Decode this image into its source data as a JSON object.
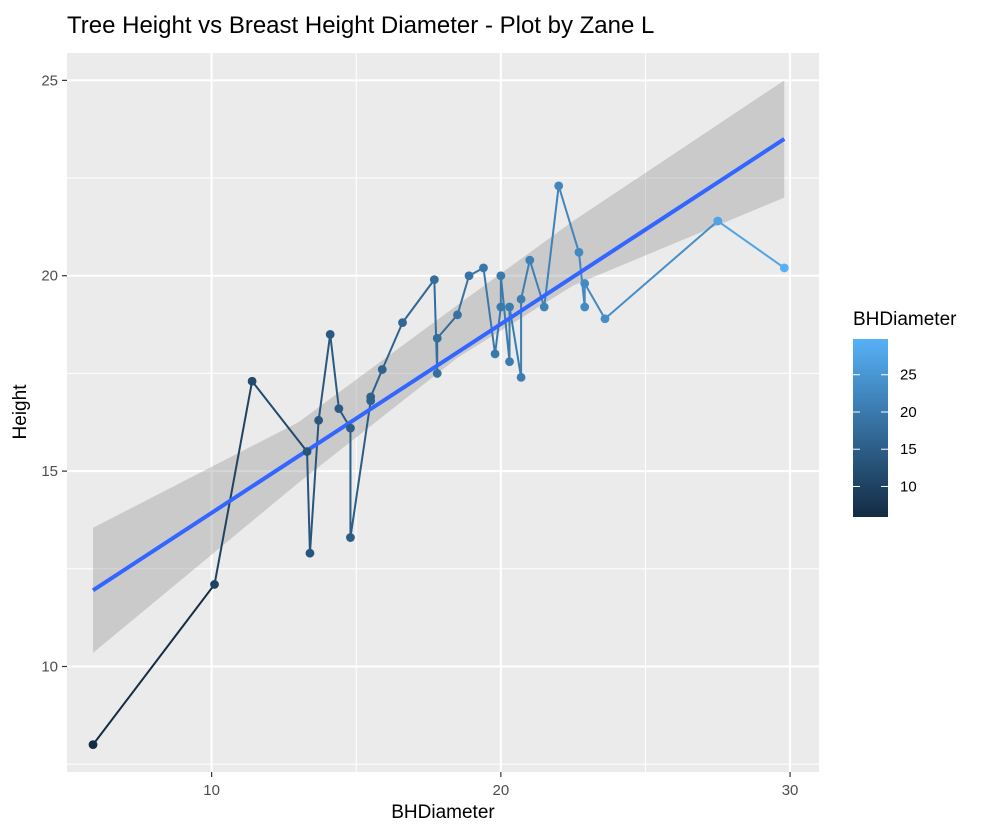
{
  "chart_data": {
    "type": "scatter",
    "title": "Tree Height vs Breast Height Diameter - Plot by Zane L",
    "xlabel": "BHDiameter",
    "ylabel": "Height",
    "xlim": [
      5.0,
      31.0
    ],
    "ylim": [
      7.3,
      25.7
    ],
    "x_ticks": [
      10,
      20,
      30
    ],
    "y_ticks": [
      10,
      15,
      20,
      25
    ],
    "grid": true,
    "points": [
      {
        "x": 5.9,
        "y": 8.0
      },
      {
        "x": 10.1,
        "y": 12.1
      },
      {
        "x": 11.4,
        "y": 17.3
      },
      {
        "x": 13.3,
        "y": 15.5
      },
      {
        "x": 13.4,
        "y": 12.9
      },
      {
        "x": 13.7,
        "y": 16.3
      },
      {
        "x": 14.1,
        "y": 18.5
      },
      {
        "x": 14.4,
        "y": 16.6
      },
      {
        "x": 14.8,
        "y": 16.1
      },
      {
        "x": 14.8,
        "y": 13.3
      },
      {
        "x": 15.5,
        "y": 16.8
      },
      {
        "x": 15.5,
        "y": 16.9
      },
      {
        "x": 15.9,
        "y": 17.6
      },
      {
        "x": 16.6,
        "y": 18.8
      },
      {
        "x": 17.7,
        "y": 19.9
      },
      {
        "x": 17.8,
        "y": 17.5
      },
      {
        "x": 17.8,
        "y": 18.4
      },
      {
        "x": 18.5,
        "y": 19.0
      },
      {
        "x": 18.9,
        "y": 20.0
      },
      {
        "x": 19.4,
        "y": 20.2
      },
      {
        "x": 19.8,
        "y": 18.0
      },
      {
        "x": 20.0,
        "y": 19.2
      },
      {
        "x": 20.0,
        "y": 20.0
      },
      {
        "x": 20.3,
        "y": 17.8
      },
      {
        "x": 20.3,
        "y": 19.2
      },
      {
        "x": 20.7,
        "y": 17.4
      },
      {
        "x": 20.7,
        "y": 19.4
      },
      {
        "x": 21.0,
        "y": 20.4
      },
      {
        "x": 21.5,
        "y": 19.2
      },
      {
        "x": 22.0,
        "y": 22.3
      },
      {
        "x": 22.7,
        "y": 20.6
      },
      {
        "x": 22.9,
        "y": 19.2
      },
      {
        "x": 22.9,
        "y": 19.8
      },
      {
        "x": 23.6,
        "y": 18.9
      },
      {
        "x": 27.5,
        "y": 21.4
      },
      {
        "x": 29.8,
        "y": 20.2
      }
    ],
    "trend_line": {
      "x": [
        5.9,
        29.8
      ],
      "y": [
        11.95,
        23.5
      ]
    },
    "confidence_band": {
      "x": [
        5.9,
        13.0,
        18.5,
        22.5,
        29.8
      ],
      "upper": [
        13.55,
        16.25,
        19.25,
        21.4,
        25.0
      ],
      "lower": [
        10.35,
        14.7,
        17.9,
        19.75,
        22.0
      ]
    },
    "legend": {
      "title": "BHDiameter",
      "position": "right",
      "ticks": [
        10,
        15,
        20,
        25
      ],
      "range": [
        5.9,
        29.8
      ]
    }
  },
  "colors": {
    "panel_background": "#ebebeb",
    "grid": "#ffffff",
    "trend_line": "#3366ff",
    "band": "#999999",
    "gradient_low": "#132b43",
    "gradient_high": "#56b1f7"
  }
}
